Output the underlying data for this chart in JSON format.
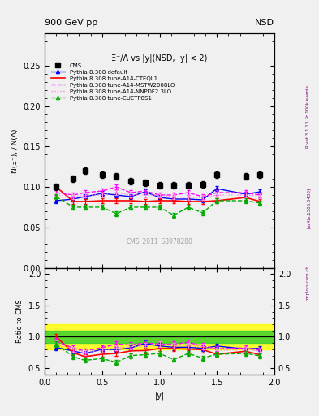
{
  "title_left": "900 GeV pp",
  "title_right": "NSD",
  "plot_title": "Ξ⁻/Λ vs |y|(NSD, |y| < 2)",
  "ylabel_main": "N(Ξ⁻), / N(Λ)",
  "ylabel_ratio": "Ratio to CMS",
  "xlabel": "|y|",
  "watermark": "CMS_2011_S8978280",
  "right_label": "Rivet 3.1.10, ≥ 100k events",
  "arxiv_label": "[arXiv:1306.3436]",
  "mcplots_label": "mcplots.cern.ch",
  "cms_x": [
    0.1,
    0.25,
    0.35,
    0.5,
    0.625,
    0.75,
    0.875,
    1.0,
    1.125,
    1.25,
    1.375,
    1.5,
    1.75,
    1.875
  ],
  "cms_y": [
    0.1,
    0.11,
    0.12,
    0.115,
    0.113,
    0.107,
    0.105,
    0.102,
    0.102,
    0.102,
    0.103,
    0.115,
    0.113,
    0.115
  ],
  "cms_yerr": [
    0.004,
    0.004,
    0.004,
    0.004,
    0.004,
    0.004,
    0.004,
    0.004,
    0.004,
    0.004,
    0.004,
    0.004,
    0.004,
    0.004
  ],
  "default_x": [
    0.1,
    0.25,
    0.35,
    0.5,
    0.625,
    0.75,
    0.875,
    1.0,
    1.125,
    1.25,
    1.375,
    1.5,
    1.75,
    1.875
  ],
  "default_y": [
    0.083,
    0.085,
    0.088,
    0.092,
    0.09,
    0.088,
    0.094,
    0.087,
    0.085,
    0.085,
    0.084,
    0.098,
    0.091,
    0.094
  ],
  "default_yerr": [
    0.003,
    0.003,
    0.003,
    0.003,
    0.003,
    0.003,
    0.003,
    0.003,
    0.003,
    0.003,
    0.003,
    0.003,
    0.003,
    0.003
  ],
  "cteql1_x": [
    0.1,
    0.25,
    0.35,
    0.5,
    0.625,
    0.75,
    0.875,
    1.0,
    1.125,
    1.25,
    1.375,
    1.5,
    1.75,
    1.875
  ],
  "cteql1_y": [
    0.1,
    0.082,
    0.082,
    0.083,
    0.083,
    0.083,
    0.082,
    0.083,
    0.083,
    0.082,
    0.082,
    0.083,
    0.087,
    0.082
  ],
  "cteql1_yerr": [
    0.003,
    0.003,
    0.003,
    0.003,
    0.003,
    0.003,
    0.003,
    0.003,
    0.003,
    0.003,
    0.003,
    0.003,
    0.003,
    0.003
  ],
  "mstw_x": [
    0.1,
    0.25,
    0.35,
    0.5,
    0.625,
    0.75,
    0.875,
    1.0,
    1.125,
    1.25,
    1.375,
    1.5,
    1.75,
    1.875
  ],
  "mstw_y": [
    0.093,
    0.09,
    0.093,
    0.095,
    0.1,
    0.093,
    0.095,
    0.09,
    0.09,
    0.093,
    0.088,
    0.093,
    0.093,
    0.09
  ],
  "mstw_yerr": [
    0.003,
    0.003,
    0.003,
    0.003,
    0.003,
    0.003,
    0.003,
    0.003,
    0.003,
    0.003,
    0.003,
    0.003,
    0.003,
    0.003
  ],
  "nnpdf_x": [
    0.1,
    0.25,
    0.35,
    0.5,
    0.625,
    0.75,
    0.875,
    1.0,
    1.125,
    1.25,
    1.375,
    1.5,
    1.75,
    1.875
  ],
  "nnpdf_y": [
    0.09,
    0.088,
    0.09,
    0.09,
    0.093,
    0.09,
    0.09,
    0.09,
    0.088,
    0.087,
    0.087,
    0.09,
    0.09,
    0.089
  ],
  "nnpdf_yerr": [
    0.003,
    0.003,
    0.003,
    0.003,
    0.003,
    0.003,
    0.003,
    0.003,
    0.003,
    0.003,
    0.003,
    0.003,
    0.003,
    0.003
  ],
  "cuetp_x": [
    0.1,
    0.25,
    0.35,
    0.5,
    0.625,
    0.75,
    0.875,
    1.0,
    1.125,
    1.25,
    1.375,
    1.5,
    1.75,
    1.875
  ],
  "cuetp_y": [
    0.088,
    0.075,
    0.075,
    0.075,
    0.067,
    0.075,
    0.075,
    0.075,
    0.065,
    0.075,
    0.068,
    0.083,
    0.083,
    0.08
  ],
  "cuetp_yerr": [
    0.003,
    0.003,
    0.003,
    0.003,
    0.003,
    0.003,
    0.003,
    0.003,
    0.003,
    0.003,
    0.003,
    0.003,
    0.003,
    0.003
  ],
  "band_yellow": [
    0.8,
    1.2
  ],
  "band_green": [
    0.9,
    1.1
  ],
  "color_cms": "#000000",
  "color_default": "#0000ff",
  "color_cteql1": "#ff0000",
  "color_mstw": "#ff00ff",
  "color_nnpdf": "#ff88dd",
  "color_cuetp": "#00aa00",
  "ylim_main": [
    0.0,
    0.29
  ],
  "ylim_ratio": [
    0.4,
    2.1
  ],
  "bg_color": "#f0f0f0"
}
